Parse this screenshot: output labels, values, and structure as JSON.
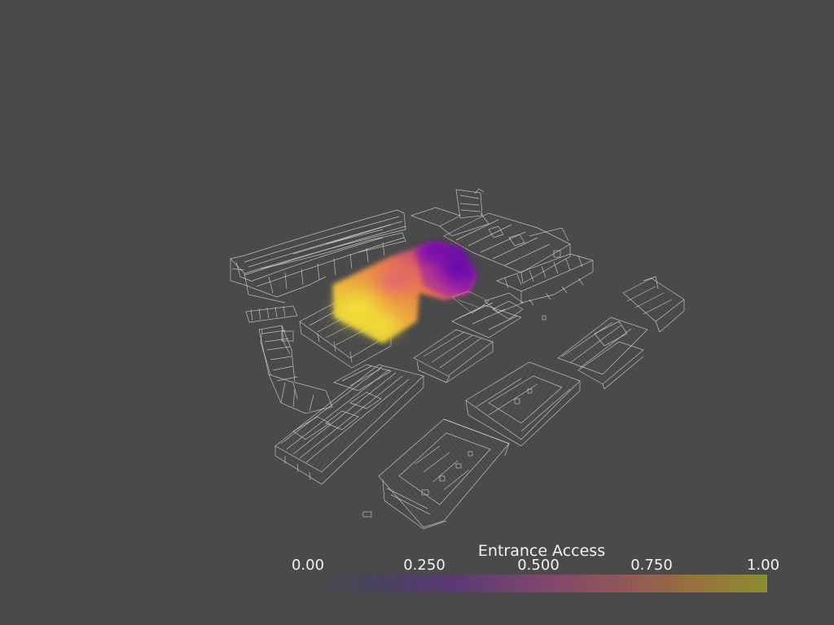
{
  "colorbar": {
    "title": "Entrance Access",
    "ticks": [
      "0.00",
      "0.250",
      "0.500",
      "0.750",
      "1.00"
    ],
    "range": [
      0.0,
      1.0
    ],
    "colormap": "plasma"
  },
  "colors": {
    "background": "#4a4a4a",
    "wireframe": "#e6e6e6"
  }
}
